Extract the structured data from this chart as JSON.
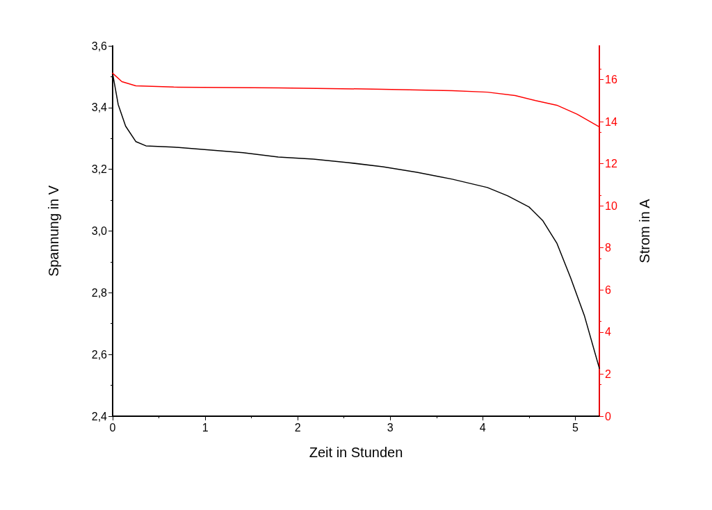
{
  "chart_data": {
    "type": "line",
    "xlabel": "Zeit in Stunden",
    "ylabel": "Spannung in V",
    "y2label": "Strom in A",
    "xlim": [
      0,
      5.26
    ],
    "xticks": [
      0,
      1,
      2,
      3,
      4,
      5
    ],
    "ylim": [
      2.4,
      3.6
    ],
    "yticks": [
      {
        "value": 2.4,
        "label": "2,4"
      },
      {
        "value": 2.6,
        "label": "2,6"
      },
      {
        "value": 2.8,
        "label": "2,8"
      },
      {
        "value": 3.0,
        "label": "3,0"
      },
      {
        "value": 3.2,
        "label": "3,2"
      },
      {
        "value": 3.4,
        "label": "3,4"
      },
      {
        "value": 3.6,
        "label": "3,6"
      }
    ],
    "y2lim": [
      0,
      17.6
    ],
    "y2ticks": [
      0,
      2,
      4,
      6,
      8,
      10,
      12,
      14,
      16
    ],
    "grid": false,
    "marker": "none",
    "line_style": "solid",
    "series": [
      {
        "color": "#000000",
        "axis": "y",
        "x": [
          0,
          0.06,
          0.14,
          0.25,
          0.36,
          0.66,
          1.04,
          1.41,
          1.79,
          2.17,
          2.54,
          2.92,
          3.29,
          3.67,
          4.05,
          4.27,
          4.5,
          4.65,
          4.8,
          4.95,
          5.1,
          5.26
        ],
        "values": [
          3.51,
          3.41,
          3.34,
          3.29,
          3.276,
          3.272,
          3.263,
          3.254,
          3.24,
          3.233,
          3.222,
          3.208,
          3.19,
          3.168,
          3.141,
          3.114,
          3.078,
          3.033,
          2.961,
          2.848,
          2.724,
          2.555
        ]
      },
      {
        "color": "#ff0000",
        "axis": "y2",
        "x": [
          0,
          0.1,
          0.25,
          0.66,
          1.79,
          2.92,
          3.67,
          4.05,
          4.35,
          4.57,
          4.8,
          5.02,
          5.26
        ],
        "values": [
          16.3,
          15.9,
          15.7,
          15.64,
          15.6,
          15.54,
          15.47,
          15.4,
          15.24,
          15.0,
          14.78,
          14.35,
          13.75
        ]
      }
    ]
  }
}
